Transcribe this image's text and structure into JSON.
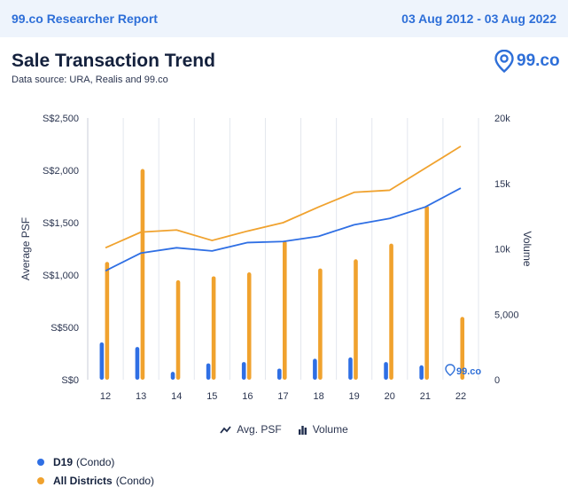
{
  "header": {
    "brand": "99.co Researcher Report",
    "date_range": "03 Aug 2012 - 03 Aug 2022"
  },
  "title": "Sale Transaction Trend",
  "source": "Data source: URA, Realis and 99.co",
  "logo_text": "99.co",
  "watermark_text": "99.co",
  "legend_types": {
    "avg_psf": "Avg. PSF",
    "volume": "Volume"
  },
  "legend_series": [
    {
      "name": "D19",
      "suffix": "(Condo)",
      "color": "#2f6fe4"
    },
    {
      "name": "All Districts",
      "suffix": "(Condo)",
      "color": "#f0a22e"
    }
  ],
  "chart_data": {
    "type": "bar",
    "categories": [
      "12",
      "13",
      "14",
      "15",
      "16",
      "17",
      "18",
      "19",
      "20",
      "21",
      "22"
    ],
    "ylabel_left": "Average PSF",
    "ylabel_right": "Volume",
    "left_axis": {
      "min": 0,
      "max": 2500,
      "ticks": [
        0,
        500,
        1000,
        1500,
        2000,
        2500
      ],
      "tick_labels": [
        "S$0",
        "S$500",
        "S$1,000",
        "S$1,500",
        "S$2,000",
        "S$2,500"
      ]
    },
    "right_axis": {
      "min": 0,
      "max": 20000,
      "ticks": [
        0,
        5000,
        10000,
        15000,
        20000
      ],
      "tick_labels": [
        "0",
        "5,000",
        "10k",
        "15k",
        "20k"
      ]
    },
    "volume_series": [
      {
        "name": "D19 (Condo)",
        "color": "#2f6fe4",
        "values": [
          2850,
          2500,
          600,
          1250,
          1350,
          850,
          1600,
          1700,
          1350,
          1100,
          0
        ]
      },
      {
        "name": "All Districts (Condo)",
        "color": "#f0a22e",
        "values": [
          9000,
          16100,
          7600,
          7900,
          8200,
          10600,
          8500,
          9200,
          10400,
          13300,
          4800
        ]
      }
    ],
    "psf_series": [
      {
        "name": "D19 (Condo)",
        "color": "#2f6fe4",
        "values": [
          1040,
          1210,
          1260,
          1230,
          1310,
          1320,
          1370,
          1480,
          1540,
          1650,
          1830
        ]
      },
      {
        "name": "All Districts (Condo)",
        "color": "#f0a22e",
        "values": [
          1260,
          1410,
          1430,
          1330,
          1420,
          1500,
          1650,
          1790,
          1810,
          2020,
          2230
        ]
      }
    ],
    "grid": true,
    "legend_position": "bottom"
  }
}
